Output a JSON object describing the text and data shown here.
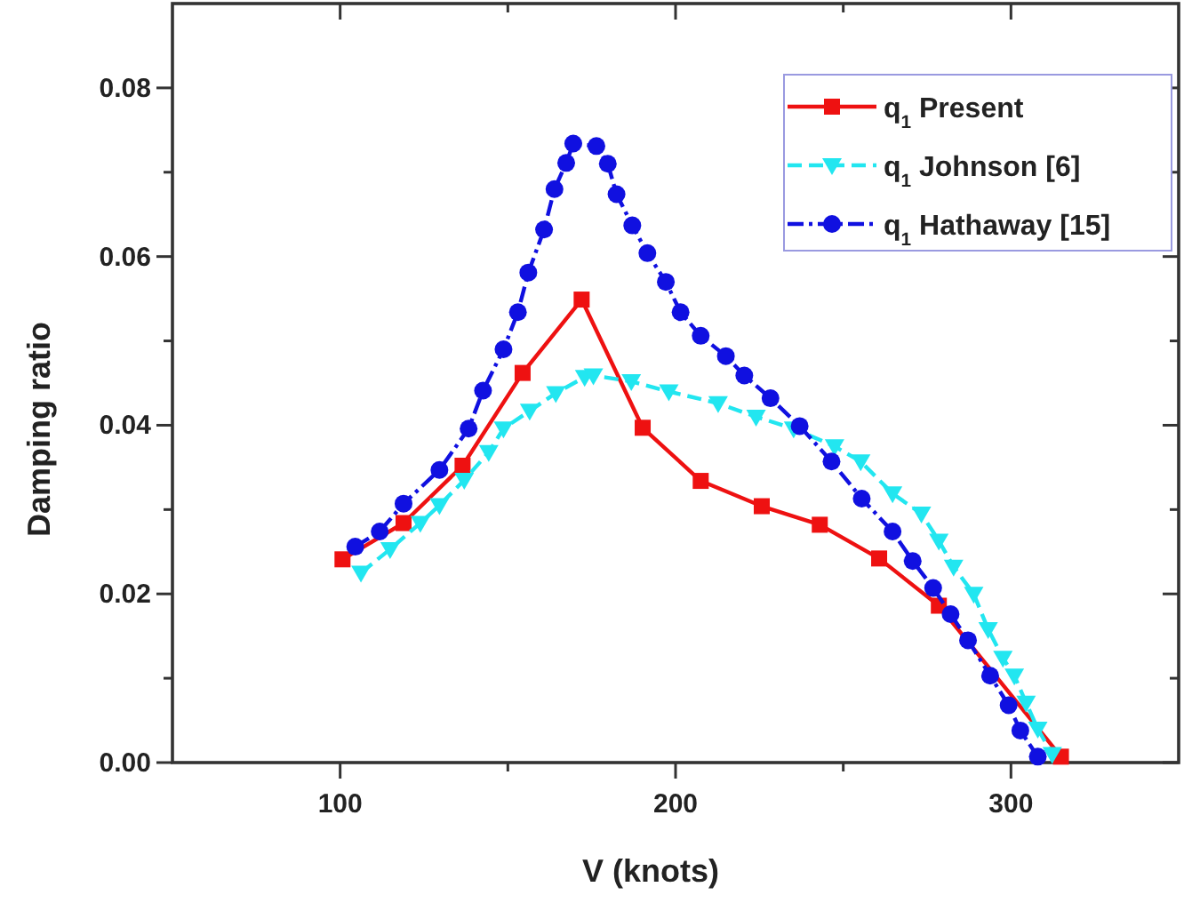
{
  "chart_data": {
    "type": "line",
    "xlabel": "V (knots)",
    "ylabel": "Damping ratio",
    "xlim": [
      50,
      350
    ],
    "ylim": [
      0,
      0.09
    ],
    "xticks": [
      {
        "value": 100,
        "label": "100"
      },
      {
        "value": 150,
        "label": null
      },
      {
        "value": 200,
        "label": "200"
      },
      {
        "value": 250,
        "label": null
      },
      {
        "value": 300,
        "label": "300"
      }
    ],
    "yticks": [
      {
        "value": 0,
        "label": "0.00"
      },
      {
        "value": 0.01,
        "label": null
      },
      {
        "value": 0.02,
        "label": "0.02"
      },
      {
        "value": 0.03,
        "label": null
      },
      {
        "value": 0.04,
        "label": "0.04"
      },
      {
        "value": 0.05,
        "label": null
      },
      {
        "value": 0.06,
        "label": "0.06"
      },
      {
        "value": 0.07,
        "label": null
      },
      {
        "value": 0.08,
        "label": "0.08"
      }
    ],
    "legend": "top right",
    "grid": false,
    "series": [
      {
        "name": "q$_{1}$ Present",
        "color": "#ee1111",
        "marker": "square",
        "line_style": "solid",
        "x": [
          100.7,
          118.9,
          136.5,
          154.4,
          172,
          190.2,
          207.5,
          225.7,
          243,
          260.7,
          278.5,
          314.9
        ],
        "values": [
          0.0241,
          0.0284,
          0.0352,
          0.0462,
          0.0549,
          0.0397,
          0.0334,
          0.0304,
          0.0282,
          0.0242,
          0.0186,
          0.0007
        ]
      },
      {
        "name": "q$_{1}$ Johnson [6]",
        "color": "#22e6f0",
        "marker": "triangle",
        "line_style": "dashed",
        "x": [
          106.2,
          114.9,
          123.9,
          129.6,
          137,
          144.3,
          148.7,
          156.5,
          164.3,
          172.9,
          175.5,
          186.8,
          198,
          212.7,
          224,
          235.2,
          247.4,
          255.2,
          264.7,
          273.3,
          278.5,
          282.9,
          288.9,
          293.2,
          297.6,
          301,
          304.5,
          308,
          312.3
        ],
        "values": [
          0.0225,
          0.0253,
          0.0284,
          0.0305,
          0.0335,
          0.0368,
          0.0396,
          0.0417,
          0.0438,
          0.0457,
          0.0459,
          0.0452,
          0.044,
          0.0426,
          0.041,
          0.0396,
          0.0375,
          0.0357,
          0.0319,
          0.0295,
          0.0263,
          0.0232,
          0.02,
          0.0158,
          0.0124,
          0.0103,
          0.0071,
          0.004,
          0.001
        ]
      },
      {
        "name": "q$_{1}$ Hathaway [15]",
        "color": "#1010e0",
        "marker": "circle",
        "line_style": "dashdot",
        "x": [
          104.5,
          111.8,
          118.9,
          129.6,
          138.3,
          142.6,
          148.7,
          153,
          156.1,
          160.8,
          163.9,
          167.4,
          169.5,
          176.4,
          179.8,
          182.4,
          187.1,
          191.6,
          197.1,
          201.5,
          207.5,
          215,
          220.5,
          228.3,
          237,
          246.5,
          255.5,
          264.7,
          270.7,
          276.8,
          282,
          287.2,
          293.8,
          299.3,
          302.8,
          308
        ],
        "values": [
          0.0256,
          0.0274,
          0.0307,
          0.0347,
          0.0396,
          0.0441,
          0.049,
          0.0534,
          0.0581,
          0.0632,
          0.068,
          0.0711,
          0.0734,
          0.0731,
          0.071,
          0.0674,
          0.0637,
          0.0604,
          0.057,
          0.0534,
          0.0506,
          0.0482,
          0.0459,
          0.0432,
          0.0399,
          0.0357,
          0.0313,
          0.0274,
          0.0239,
          0.0207,
          0.0176,
          0.0145,
          0.0103,
          0.0068,
          0.0038,
          0.0007
        ]
      }
    ]
  }
}
